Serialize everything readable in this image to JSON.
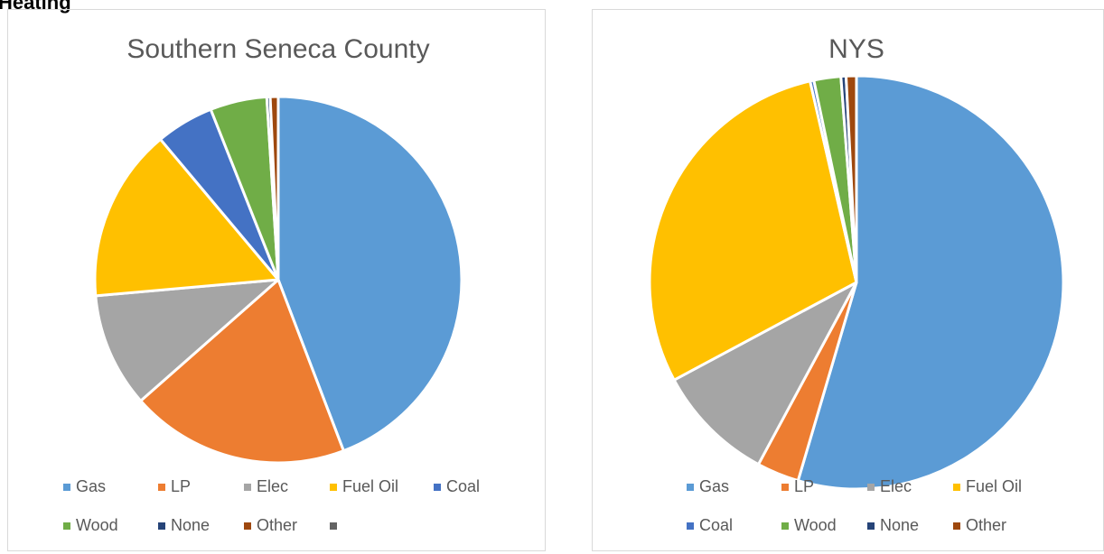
{
  "heading": "Heating",
  "chart_data": [
    {
      "type": "pie",
      "title": "Southern Seneca County",
      "categories": [
        "Gas",
        "LP",
        "Elec",
        "Fuel Oil",
        "Coal",
        "Wood",
        "None",
        "Other",
        null
      ],
      "values": [
        44.2,
        19.3,
        10.1,
        15.3,
        5.1,
        5.0,
        0.3,
        0.7,
        0
      ],
      "colors": [
        "#5b9bd5",
        "#ed7d31",
        "#a5a5a5",
        "#ffc000",
        "#4472c4",
        "#70ad47",
        "#264478",
        "#9e480e",
        "#636363"
      ],
      "legend": "bottom"
    },
    {
      "type": "pie",
      "title": "NYS",
      "categories": [
        "Gas",
        "LP",
        "Elec",
        "Fuel Oil",
        "Coal",
        "Wood",
        "None",
        "Other"
      ],
      "values": [
        54.5,
        3.3,
        9.3,
        29.2,
        0.3,
        2.1,
        0.4,
        0.8
      ],
      "colors": [
        "#5b9bd5",
        "#ed7d31",
        "#a5a5a5",
        "#ffc000",
        "#4472c4",
        "#70ad47",
        "#264478",
        "#9e480e"
      ],
      "legend": "bottom"
    }
  ]
}
